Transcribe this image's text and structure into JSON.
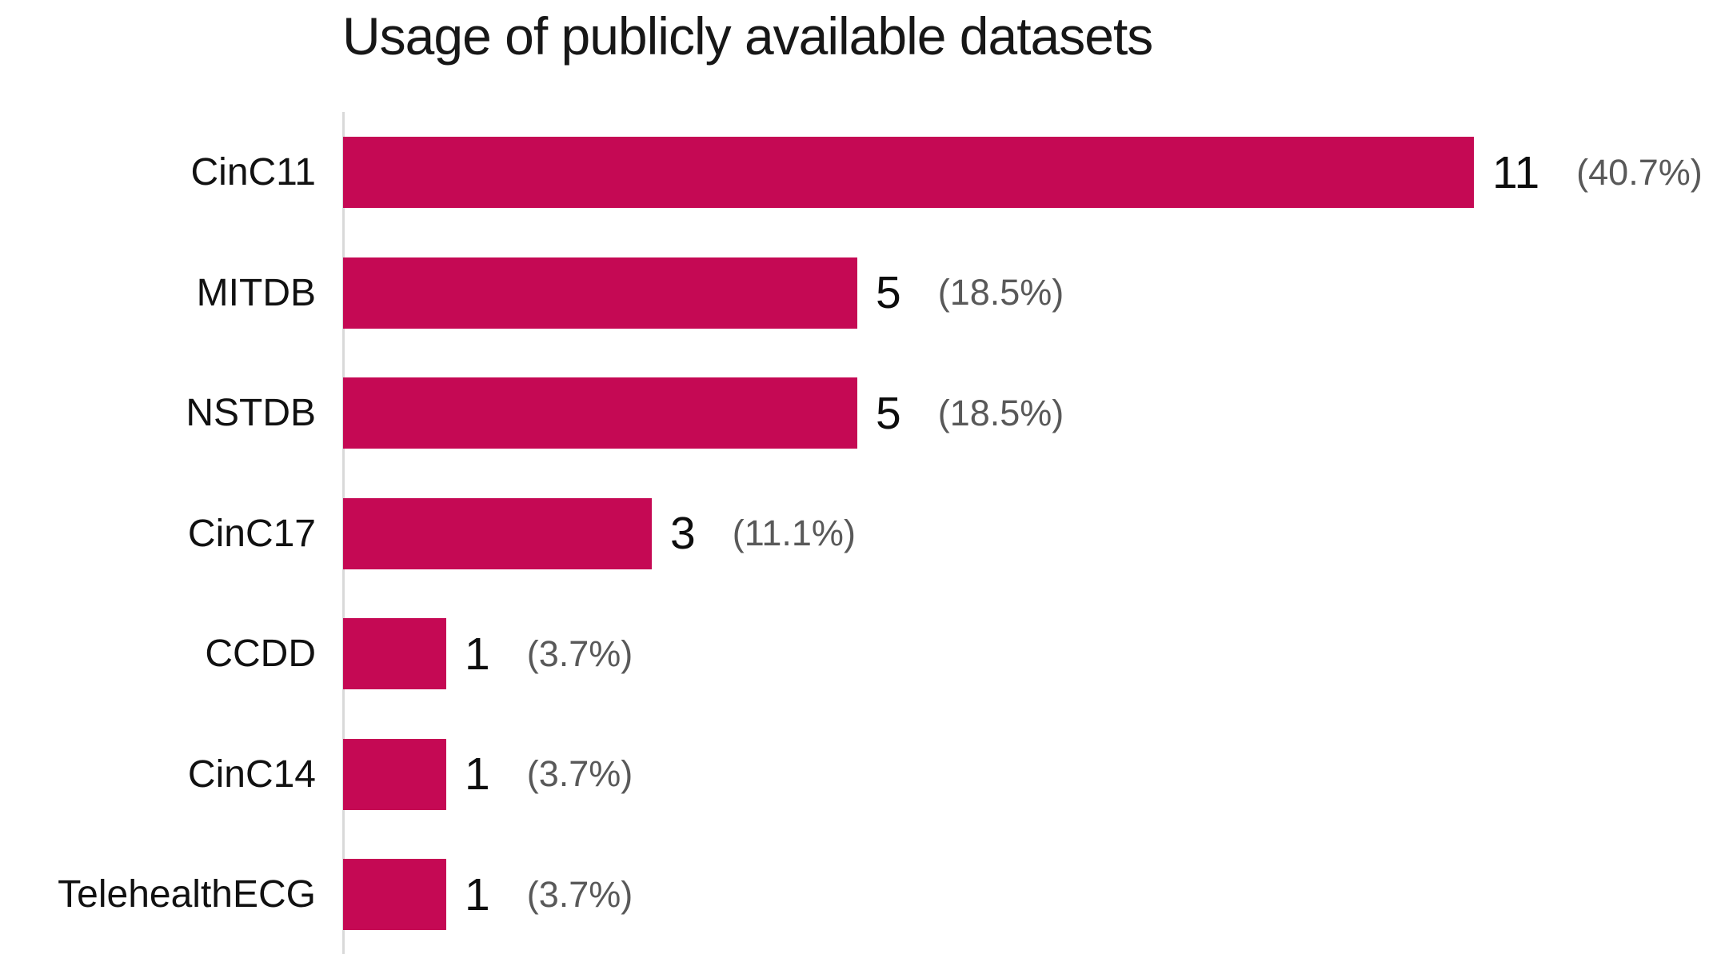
{
  "title": "Usage of publicly available datasets",
  "colors": {
    "bar": "#C50954",
    "axis_line": "#D9D9D9",
    "title_text": "#171717",
    "category_text": "#111111",
    "value_text": "#0D0D0D",
    "percent_text": "#595959",
    "background": "#FFFFFF"
  },
  "chart_data": {
    "type": "bar",
    "orientation": "horizontal",
    "title": "Usage of publicly available datasets",
    "categories": [
      "CinC11",
      "MITDB",
      "NSTDB",
      "CinC17",
      "CCDD",
      "CinC14",
      "TelehealthECG"
    ],
    "values": [
      11,
      5,
      5,
      3,
      1,
      1,
      1
    ],
    "value_labels": [
      "11",
      "5",
      "5",
      "3",
      "1",
      "1",
      "1"
    ],
    "percent_labels": [
      "(40.7%)",
      "(18.5%)",
      "(18.5%)",
      "(11.1%)",
      "(3.7%)",
      "(3.7%)",
      "(3.7%)"
    ],
    "xlabel": "",
    "ylabel": "",
    "xlim": [
      0,
      11
    ],
    "grid": false,
    "legend": false,
    "bars_sorted_descending": true
  }
}
